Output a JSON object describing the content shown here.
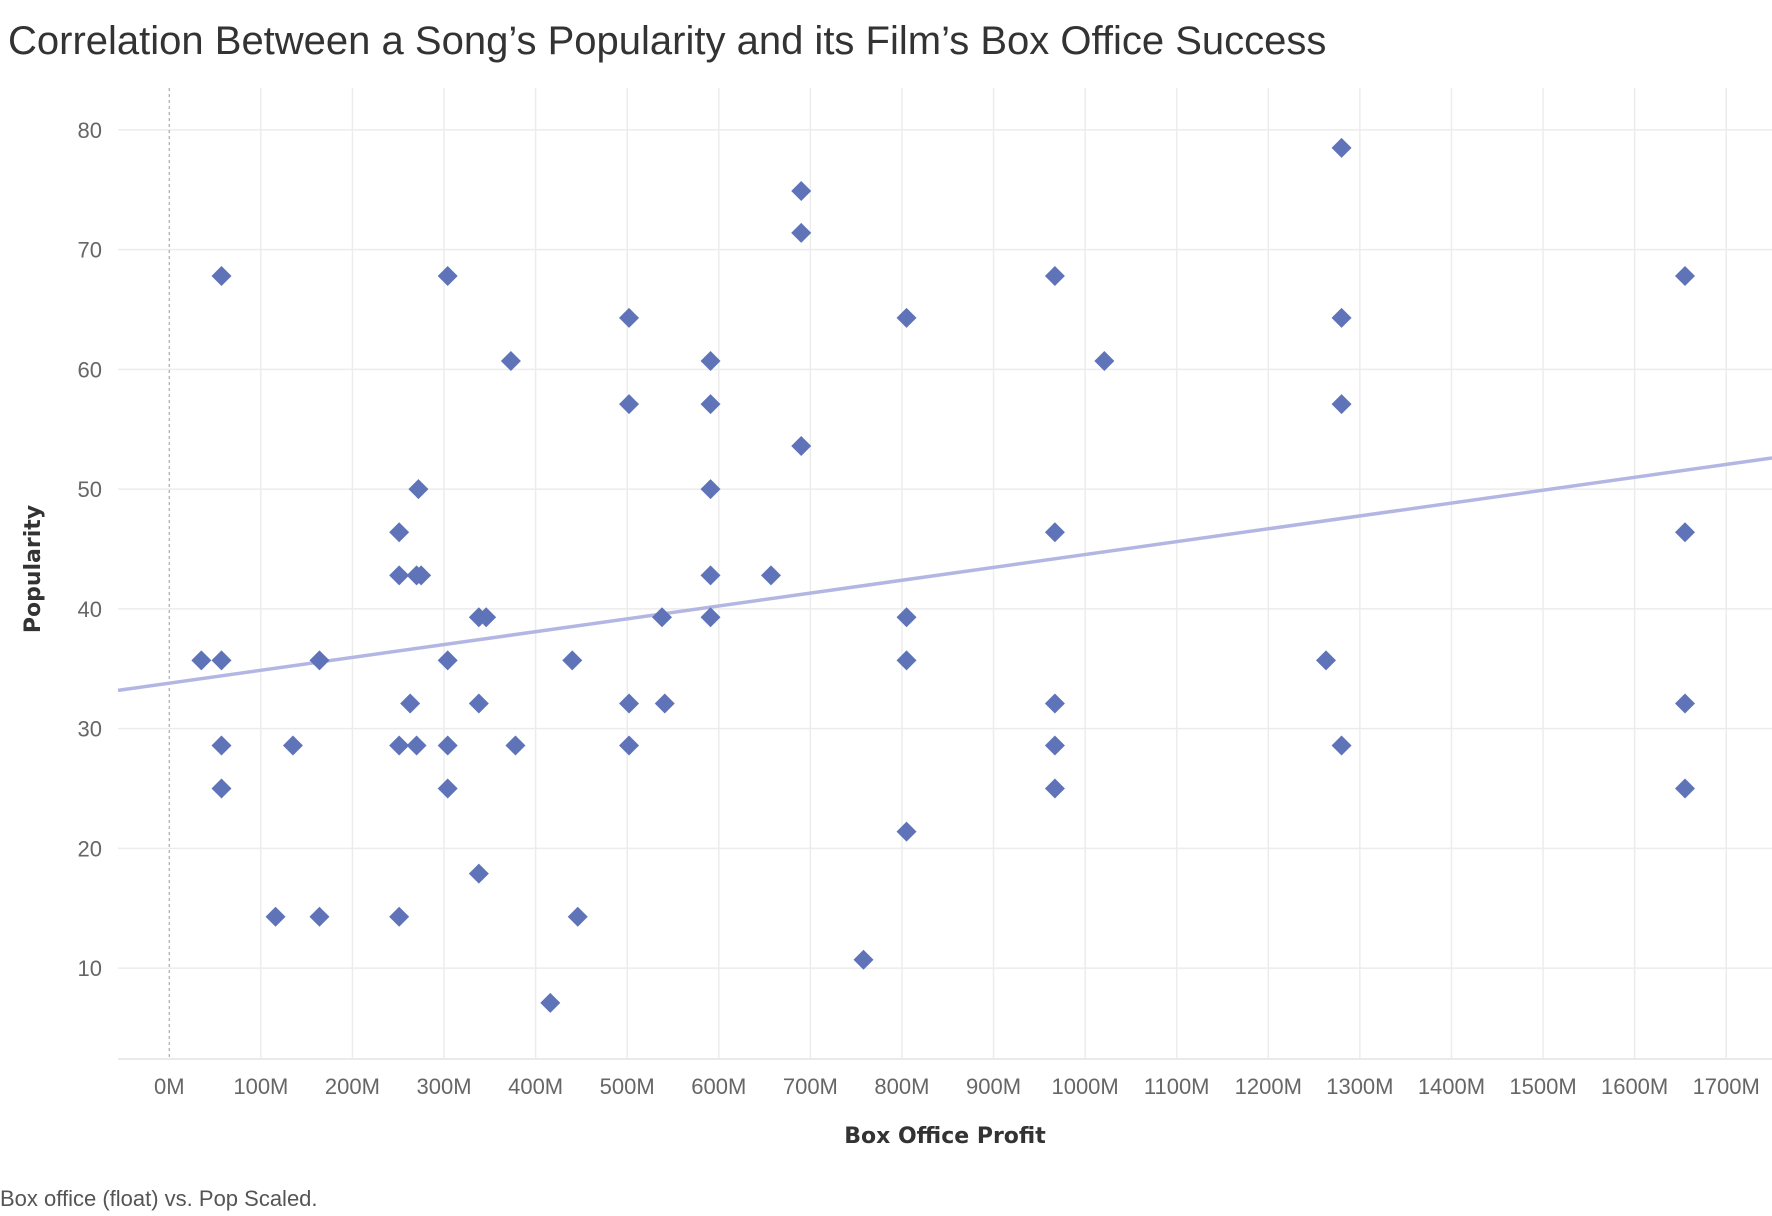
{
  "chart_data": {
    "type": "scatter",
    "title": "Correlation Between a Song’s Popularity and its Film’s Box Office Success",
    "xlabel": "Box Office Profit",
    "ylabel": "Popularity",
    "caption": "Box office (float) vs. Pop Scaled.",
    "xlim": [
      -56,
      1750
    ],
    "ylim": [
      2.5,
      83.5
    ],
    "x_ticks": [
      0,
      100,
      200,
      300,
      400,
      500,
      600,
      700,
      800,
      900,
      1000,
      1100,
      1200,
      1300,
      1400,
      1500,
      1600,
      1700
    ],
    "x_tick_labels": [
      "0M",
      "100M",
      "200M",
      "300M",
      "400M",
      "500M",
      "600M",
      "700M",
      "800M",
      "900M",
      "1000M",
      "1100M",
      "1200M",
      "1300M",
      "1400M",
      "1500M",
      "1600M",
      "1700M"
    ],
    "y_ticks": [
      10,
      20,
      30,
      40,
      50,
      60,
      70,
      80
    ],
    "y_tick_labels": [
      "10",
      "20",
      "30",
      "40",
      "50",
      "60",
      "70",
      "80"
    ],
    "grid": true,
    "marker": "diamond",
    "marker_color": "#5f73b8",
    "trend_color": "#b3b6e3",
    "trend_line": {
      "x": [
        -56,
        1750
      ],
      "y": [
        33.2,
        52.6
      ]
    },
    "points": [
      [
        35,
        35.7
      ],
      [
        57,
        35.7
      ],
      [
        57,
        67.8
      ],
      [
        57,
        28.6
      ],
      [
        57,
        25.0
      ],
      [
        116,
        14.3
      ],
      [
        135,
        28.6
      ],
      [
        164,
        35.7
      ],
      [
        164,
        14.3
      ],
      [
        251,
        46.4
      ],
      [
        251,
        42.8
      ],
      [
        251,
        28.6
      ],
      [
        251,
        14.3
      ],
      [
        263,
        32.1
      ],
      [
        270,
        42.8
      ],
      [
        270,
        28.6
      ],
      [
        272,
        50.0
      ],
      [
        275,
        42.8
      ],
      [
        304,
        67.8
      ],
      [
        304,
        35.7
      ],
      [
        304,
        28.6
      ],
      [
        304,
        25.0
      ],
      [
        338,
        39.3
      ],
      [
        338,
        32.1
      ],
      [
        338,
        17.9
      ],
      [
        346,
        39.3
      ],
      [
        373,
        60.7
      ],
      [
        378,
        28.6
      ],
      [
        416,
        7.1
      ],
      [
        440,
        35.7
      ],
      [
        446,
        14.3
      ],
      [
        502,
        64.3
      ],
      [
        502,
        57.1
      ],
      [
        502,
        32.1
      ],
      [
        502,
        28.6
      ],
      [
        538,
        39.3
      ],
      [
        541,
        32.1
      ],
      [
        591,
        60.7
      ],
      [
        591,
        57.1
      ],
      [
        591,
        50.0
      ],
      [
        591,
        42.8
      ],
      [
        591,
        39.3
      ],
      [
        657,
        42.8
      ],
      [
        690,
        74.9
      ],
      [
        690,
        71.4
      ],
      [
        690,
        53.6
      ],
      [
        758,
        10.7
      ],
      [
        805,
        64.3
      ],
      [
        805,
        39.3
      ],
      [
        805,
        35.7
      ],
      [
        805,
        21.4
      ],
      [
        967,
        67.8
      ],
      [
        967,
        46.4
      ],
      [
        967,
        32.1
      ],
      [
        967,
        28.6
      ],
      [
        967,
        25.0
      ],
      [
        1021,
        60.7
      ],
      [
        1263,
        35.7
      ],
      [
        1280,
        78.5
      ],
      [
        1280,
        64.3
      ],
      [
        1280,
        57.1
      ],
      [
        1280,
        28.6
      ],
      [
        1655,
        67.8
      ],
      [
        1655,
        46.4
      ],
      [
        1655,
        32.1
      ],
      [
        1655,
        25.0
      ]
    ]
  }
}
